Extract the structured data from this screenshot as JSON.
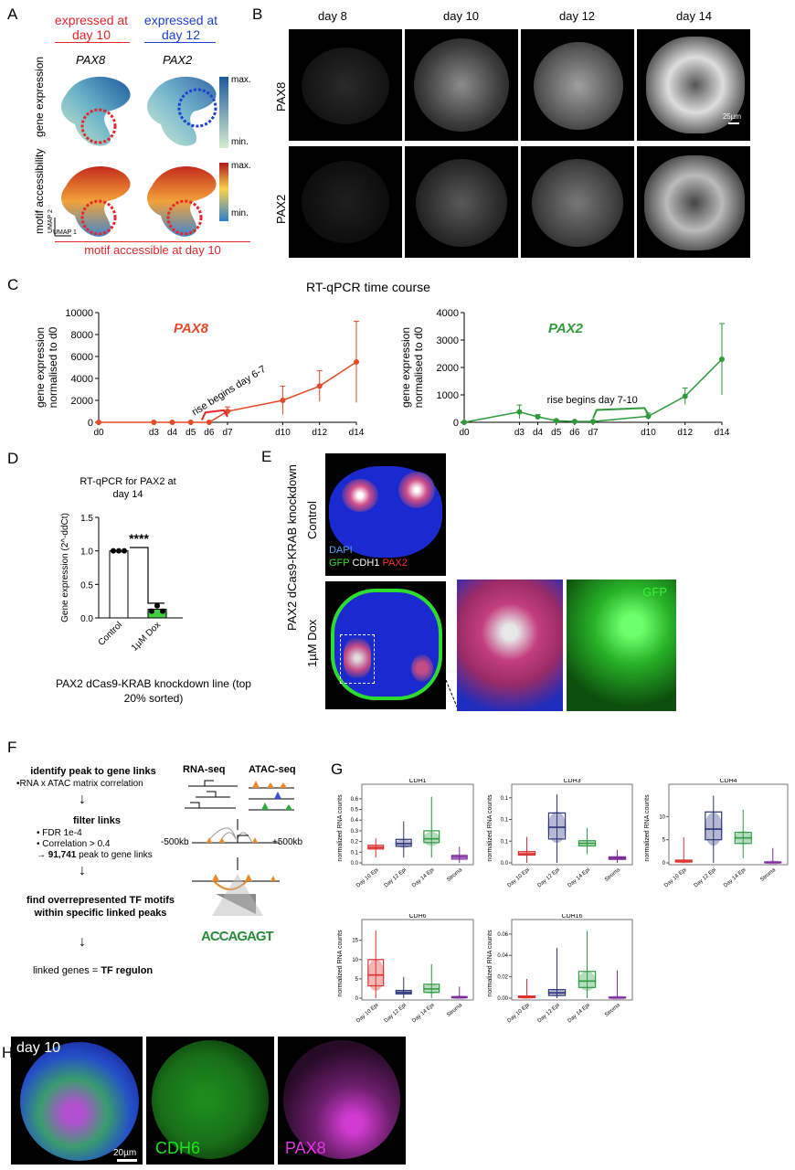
{
  "panels": {
    "A": "A",
    "B": "B",
    "C": "C",
    "D": "D",
    "E": "E",
    "F": "F",
    "G": "G",
    "H": "H"
  },
  "panelA": {
    "header_day10": "expressed at day 10",
    "header_day12": "expressed at day 12",
    "gene1": "PAX8",
    "gene2": "PAX2",
    "row1": "gene expression",
    "row2": "motif accessibility",
    "max": "max.",
    "min": "min.",
    "umap1": "UMAP 1",
    "umap2": "UMAP 2",
    "footer": "motif accessible at day 10",
    "colors": {
      "red": "#e3262a",
      "blue": "#1f3fd1"
    }
  },
  "panelB": {
    "cols": [
      "day 8",
      "day 10",
      "day 12",
      "day 14"
    ],
    "rows": [
      "PAX8",
      "PAX2"
    ],
    "scalebar": "25µm"
  },
  "panelC": {
    "title": "RT-qPCR time course",
    "ylabel": "gene expression normalised to d0",
    "annot_pax8": "rise begins day 6-7",
    "annot_pax2": "rise begins day 7-10"
  },
  "panelD": {
    "title": "RT-qPCR for PAX2 at day 14",
    "ylabel": "Gene expression (2^-ddCt)",
    "sig": "****",
    "caption": "PAX2 dCas9-KRAB knockdown line (top 20% sorted)"
  },
  "panelE": {
    "side": "PAX2 dCas9-KRAB knockdown",
    "control": "Control",
    "dox": "1µM Dox",
    "dapi": "DAPI",
    "gfp": "GFP",
    "cdh1": "CDH1",
    "pax2": "PAX2",
    "gfp_inset": "GFP"
  },
  "panelF": {
    "step1": "identify peak to gene links",
    "step1b": "•RNA x ATAC matrix correlation",
    "step2": "filter links",
    "step2a": "• FDR 1e-4",
    "step2b": "• Correlation > 0.4",
    "step2c_pre": "→ ",
    "step2c_bold": "91,741",
    "step2c_post": " peak to gene links",
    "step3": "find overrepresented TF motifs within specific linked peaks",
    "step4_pre": "linked genes = ",
    "step4_bold": "TF regulon",
    "rnaseq": "RNA-seq",
    "atacseq": "ATAC-seq",
    "minus500": "-500kb",
    "plus500": "+500kb",
    "motif": "ACCAGAGT"
  },
  "panelG": {
    "ylabel": "normalized RNA counts",
    "categories": [
      "Day 10 Epi",
      "Day 12 Epi",
      "Day 14 Epi",
      "Stroma"
    ],
    "colors": [
      "#d9302c",
      "#2c3577",
      "#2e9a45",
      "#7b2c9a"
    ]
  },
  "panelH": {
    "day": "day 10",
    "scalebar": "20µm",
    "cdh6": "CDH6",
    "pax8": "PAX8"
  },
  "chart_data": [
    {
      "type": "line",
      "title": "PAX8",
      "color": "#e34a27",
      "x": [
        "d0",
        "d3",
        "d4",
        "d5",
        "d6",
        "d7",
        "d10",
        "d12",
        "d14"
      ],
      "xpos": [
        0,
        3,
        4,
        5,
        6,
        7,
        10,
        12,
        14
      ],
      "values": [
        0,
        0,
        0,
        0,
        0,
        1000,
        2000,
        3300,
        5500
      ],
      "err": [
        0,
        0,
        0,
        0,
        0,
        400,
        1300,
        1400,
        3700
      ],
      "ylim": [
        0,
        10000
      ],
      "yticks": [
        0,
        2000,
        4000,
        6000,
        8000,
        10000
      ],
      "ylabel": "gene expression normalised to d0"
    },
    {
      "type": "line",
      "title": "PAX2",
      "color": "#2e9a3a",
      "x": [
        "d0",
        "d3",
        "d4",
        "d5",
        "d6",
        "d7",
        "d10",
        "d12",
        "d14"
      ],
      "xpos": [
        0,
        3,
        4,
        5,
        6,
        7,
        10,
        12,
        14
      ],
      "values": [
        0,
        380,
        200,
        60,
        30,
        30,
        220,
        950,
        2300
      ],
      "err": [
        0,
        250,
        80,
        40,
        20,
        20,
        120,
        300,
        1300
      ],
      "ylim": [
        0,
        4000
      ],
      "yticks": [
        0,
        1000,
        2000,
        3000,
        4000
      ],
      "ylabel": "gene expression normalised to d0"
    },
    {
      "type": "bar",
      "title": "RT-qPCR for PAX2 at day 14",
      "categories": [
        "Control",
        "1µM Dox"
      ],
      "values": [
        1.0,
        0.13
      ],
      "points": [
        [
          1.0,
          1.0,
          1.0
        ],
        [
          0.1,
          0.18,
          0.1
        ]
      ],
      "colors": [
        "#ffffff",
        "#3fd13f"
      ],
      "ylim": [
        0,
        1.5
      ],
      "yticks": [
        0.0,
        0.5,
        1.0,
        1.5
      ],
      "ylabel": "Gene expression (2^-ddCt)"
    },
    {
      "type": "box",
      "title": "CDH1",
      "categories": [
        "Day 10 Epi",
        "Day 12 Epi",
        "Day 14 Epi",
        "Stroma"
      ],
      "ylim": [
        0,
        0.65
      ],
      "yticks": [
        0.0,
        0.1,
        0.2,
        0.3,
        0.4,
        0.5,
        0.6
      ],
      "boxes": [
        {
          "min": 0.05,
          "q1": 0.13,
          "median": 0.145,
          "q3": 0.165,
          "max": 0.23
        },
        {
          "min": 0.05,
          "q1": 0.155,
          "median": 0.18,
          "q3": 0.22,
          "max": 0.39
        },
        {
          "min": 0.05,
          "q1": 0.19,
          "median": 0.225,
          "q3": 0.3,
          "max": 0.62
        },
        {
          "min": 0.0,
          "q1": 0.035,
          "median": 0.055,
          "q3": 0.07,
          "max": 0.15
        }
      ]
    },
    {
      "type": "box",
      "title": "CDH3",
      "categories": [
        "Day 10 Epi",
        "Day 12 Epi",
        "Day 14 Epi",
        "Stroma"
      ],
      "ylim": [
        0,
        0.16
      ],
      "yticks": [
        0.0,
        0.05,
        0.1,
        0.15
      ],
      "boxes": [
        {
          "min": 0.0,
          "q1": 0.018,
          "median": 0.021,
          "q3": 0.026,
          "max": 0.06
        },
        {
          "min": 0.0,
          "q1": 0.055,
          "median": 0.082,
          "q3": 0.115,
          "max": 0.158
        },
        {
          "min": 0.02,
          "q1": 0.039,
          "median": 0.045,
          "q3": 0.051,
          "max": 0.08
        },
        {
          "min": 0.0,
          "q1": 0.008,
          "median": 0.011,
          "q3": 0.014,
          "max": 0.03
        }
      ]
    },
    {
      "type": "box",
      "title": "CDH4",
      "categories": [
        "Day 10 Epi",
        "Day 12 Epi",
        "Day 14 Epi",
        "Stroma"
      ],
      "ylim": [
        0,
        15
      ],
      "yticks": [
        0,
        5,
        10
      ],
      "boxes": [
        {
          "min": 0,
          "q1": 0.2,
          "median": 0.3,
          "q3": 0.6,
          "max": 5.5
        },
        {
          "min": 0,
          "q1": 5.0,
          "median": 7.3,
          "q3": 11.0,
          "max": 14.5
        },
        {
          "min": 1,
          "q1": 4.2,
          "median": 5.4,
          "q3": 6.6,
          "max": 11.5
        },
        {
          "min": 0,
          "q1": 0.05,
          "median": 0.1,
          "q3": 0.2,
          "max": 3.2
        }
      ]
    },
    {
      "type": "box",
      "title": "CDH6",
      "categories": [
        "Day 10 Epi",
        "Day 12 Epi",
        "Day 14 Epi",
        "Stroma"
      ],
      "ylim": [
        0,
        18
      ],
      "yticks": [
        0,
        5,
        10,
        15
      ],
      "boxes": [
        {
          "min": 0,
          "q1": 3.2,
          "median": 6.0,
          "q3": 10.0,
          "max": 17.5
        },
        {
          "min": 0,
          "q1": 1.1,
          "median": 1.5,
          "q3": 2.0,
          "max": 5.5
        },
        {
          "min": 0,
          "q1": 1.5,
          "median": 2.4,
          "q3": 3.6,
          "max": 8.8
        },
        {
          "min": 0,
          "q1": 0.1,
          "median": 0.2,
          "q3": 0.4,
          "max": 3.0
        }
      ]
    },
    {
      "type": "box",
      "title": "CDH16",
      "categories": [
        "Day 10 Epi",
        "Day 12 Epi",
        "Day 14 Epi",
        "Stroma"
      ],
      "ylim": [
        0,
        0.065
      ],
      "yticks": [
        0.0,
        0.02,
        0.04,
        0.06
      ],
      "boxes": [
        {
          "min": 0,
          "q1": 0.0005,
          "median": 0.001,
          "q3": 0.002,
          "max": 0.018
        },
        {
          "min": 0,
          "q1": 0.0025,
          "median": 0.005,
          "q3": 0.008,
          "max": 0.047
        },
        {
          "min": 0,
          "q1": 0.01,
          "median": 0.016,
          "q3": 0.025,
          "max": 0.063
        },
        {
          "min": 0,
          "q1": 0.0002,
          "median": 0.0005,
          "q3": 0.001,
          "max": 0.026
        }
      ]
    }
  ]
}
